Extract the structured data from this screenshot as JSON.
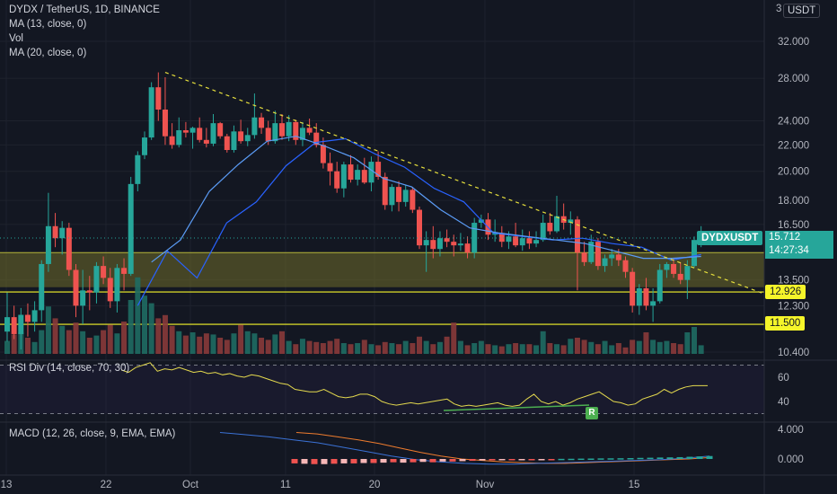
{
  "header": {
    "symbol_line": "DYDX / TetherUS, 1D, BINANCE",
    "indicators": [
      "MA (13, close, 0)",
      "Vol",
      "MA (20, close, 0)"
    ],
    "currency_button": "USDT",
    "scale_top_label": "3"
  },
  "rsi_label": "RSI Div (14, close, 70, 30)",
  "macd_label": "MACD (12, 26, close, 9, EMA, EMA)",
  "price_tag": {
    "symbol": "DYDXUSDT",
    "price": "15.712",
    "countdown": "14:27:34"
  },
  "level_tags": [
    "12.926",
    "11.500"
  ],
  "bull_div_marker": "R",
  "colors": {
    "background": "#131722",
    "up": "#26a69a",
    "down": "#ef5350",
    "ma13": "#2962ff",
    "ma20": "#5b9cf6",
    "trendline": "#e6df3c",
    "zone": "#706c2a",
    "level": "#f5f52a",
    "rsi": "#e4d94e",
    "macd": "#3b72d6",
    "signal": "#ef7c2e"
  },
  "chart_data": {
    "type": "candlestick",
    "symbol": "DYDX / TetherUS",
    "interval": "1D",
    "exchange": "BINANCE",
    "price_axis_ticks": [
      "32.000",
      "28.000",
      "24.000",
      "22.000",
      "20.000",
      "18.000",
      "16.500",
      "13.500",
      "12.300",
      "10.400"
    ],
    "x_axis_ticks": [
      "13",
      "22",
      "Oct",
      "11",
      "20",
      "Nov",
      "15"
    ],
    "ylim": [
      10.2,
      34
    ],
    "log_scale": true,
    "candles": [
      [
        11.2,
        12.9,
        10.8,
        11.8
      ],
      [
        11.8,
        12.3,
        10.9,
        11.1
      ],
      [
        11.1,
        12.2,
        10.5,
        11.9
      ],
      [
        11.9,
        12.4,
        11.0,
        11.6
      ],
      [
        11.6,
        12.5,
        11.2,
        12.1
      ],
      [
        12.1,
        14.5,
        11.6,
        14.3
      ],
      [
        14.3,
        18.5,
        13.9,
        16.4
      ],
      [
        16.4,
        17.2,
        15.2,
        15.7
      ],
      [
        15.7,
        16.7,
        14.8,
        16.3
      ],
      [
        16.3,
        16.6,
        13.7,
        14.0
      ],
      [
        14.0,
        14.3,
        11.8,
        12.3
      ],
      [
        12.3,
        14.0,
        11.5,
        13.0
      ],
      [
        13.0,
        13.7,
        12.1,
        12.9
      ],
      [
        12.9,
        14.4,
        12.4,
        14.2
      ],
      [
        14.2,
        14.7,
        13.3,
        13.6
      ],
      [
        13.6,
        14.1,
        12.2,
        12.5
      ],
      [
        12.5,
        14.3,
        12.0,
        14.1
      ],
      [
        14.1,
        14.6,
        13.0,
        13.8
      ],
      [
        13.8,
        19.6,
        13.7,
        19.1
      ],
      [
        19.1,
        21.5,
        18.6,
        21.2
      ],
      [
        21.2,
        23.1,
        20.9,
        22.6
      ],
      [
        22.6,
        27.6,
        22.4,
        27.1
      ],
      [
        27.1,
        28.6,
        24.0,
        25.0
      ],
      [
        25.0,
        28.1,
        22.0,
        22.7
      ],
      [
        22.7,
        23.8,
        21.7,
        22.0
      ],
      [
        22.0,
        24.3,
        21.8,
        23.2
      ],
      [
        23.2,
        23.9,
        22.6,
        23.0
      ],
      [
        23.0,
        23.5,
        21.7,
        23.4
      ],
      [
        23.4,
        24.3,
        22.2,
        22.4
      ],
      [
        22.4,
        23.4,
        21.8,
        22.1
      ],
      [
        22.1,
        24.6,
        21.9,
        23.8
      ],
      [
        23.8,
        23.9,
        22.5,
        22.7
      ],
      [
        22.7,
        22.9,
        21.4,
        21.6
      ],
      [
        21.6,
        23.6,
        21.4,
        23.1
      ],
      [
        23.1,
        24.1,
        22.1,
        22.3
      ],
      [
        22.3,
        23.4,
        21.9,
        22.8
      ],
      [
        22.8,
        26.5,
        22.5,
        24.3
      ],
      [
        24.3,
        24.7,
        22.9,
        23.4
      ],
      [
        23.4,
        24.0,
        22.0,
        22.3
      ],
      [
        22.3,
        24.9,
        22.1,
        23.8
      ],
      [
        23.8,
        24.6,
        22.4,
        22.7
      ],
      [
        22.7,
        24.5,
        22.3,
        23.9
      ],
      [
        23.9,
        24.1,
        22.0,
        22.4
      ],
      [
        22.4,
        23.9,
        21.9,
        23.4
      ],
      [
        23.4,
        24.2,
        22.8,
        23.0
      ],
      [
        23.0,
        23.8,
        21.8,
        22.0
      ],
      [
        22.0,
        22.6,
        20.2,
        20.6
      ],
      [
        20.6,
        21.4,
        19.0,
        20.0
      ],
      [
        20.0,
        20.7,
        18.5,
        18.8
      ],
      [
        18.8,
        20.7,
        18.2,
        20.5
      ],
      [
        20.5,
        21.2,
        19.2,
        19.4
      ],
      [
        19.4,
        20.5,
        19.0,
        20.1
      ],
      [
        20.1,
        21.0,
        19.1,
        19.2
      ],
      [
        19.2,
        21.1,
        18.6,
        20.7
      ],
      [
        20.7,
        21.5,
        19.4,
        19.6
      ],
      [
        19.6,
        19.9,
        17.4,
        17.7
      ],
      [
        17.7,
        19.1,
        17.3,
        18.9
      ],
      [
        18.9,
        19.3,
        17.3,
        17.9
      ],
      [
        17.9,
        19.0,
        17.6,
        18.7
      ],
      [
        18.7,
        18.9,
        17.2,
        17.4
      ],
      [
        17.4,
        17.6,
        15.1,
        15.3
      ],
      [
        15.3,
        16.1,
        13.9,
        15.6
      ],
      [
        15.6,
        16.4,
        14.6,
        15.1
      ],
      [
        15.1,
        16.1,
        14.7,
        15.7
      ],
      [
        15.7,
        16.2,
        15.2,
        15.5
      ],
      [
        15.5,
        15.9,
        14.7,
        15.3
      ],
      [
        15.3,
        16.0,
        15.0,
        15.4
      ],
      [
        15.4,
        15.8,
        14.6,
        14.9
      ],
      [
        14.9,
        16.9,
        14.6,
        16.6
      ],
      [
        16.6,
        17.1,
        16.3,
        16.8
      ],
      [
        16.8,
        17.2,
        15.6,
        15.9
      ],
      [
        15.9,
        16.8,
        15.5,
        16.0
      ],
      [
        16.0,
        16.4,
        15.2,
        15.5
      ],
      [
        15.5,
        16.1,
        15.1,
        15.8
      ],
      [
        15.8,
        16.6,
        15.2,
        15.3
      ],
      [
        15.3,
        16.2,
        15.0,
        15.7
      ],
      [
        15.7,
        16.1,
        15.1,
        15.4
      ],
      [
        15.4,
        16.1,
        15.2,
        15.6
      ],
      [
        15.6,
        17.1,
        15.5,
        16.6
      ],
      [
        16.6,
        17.2,
        15.9,
        16.1
      ],
      [
        16.1,
        18.3,
        16.0,
        17.0
      ],
      [
        17.0,
        17.8,
        16.2,
        16.6
      ],
      [
        16.6,
        17.3,
        15.9,
        16.8
      ],
      [
        16.8,
        17.0,
        13.0,
        14.9
      ],
      [
        14.9,
        15.5,
        14.2,
        14.4
      ],
      [
        14.4,
        15.9,
        14.3,
        15.5
      ],
      [
        15.5,
        15.7,
        14.0,
        14.2
      ],
      [
        14.2,
        14.8,
        13.9,
        14.6
      ],
      [
        14.6,
        15.1,
        14.2,
        14.8
      ],
      [
        14.8,
        15.1,
        14.2,
        14.5
      ],
      [
        14.5,
        14.7,
        13.6,
        13.9
      ],
      [
        13.9,
        14.1,
        12.0,
        12.3
      ],
      [
        12.3,
        13.3,
        11.9,
        13.1
      ],
      [
        13.1,
        13.6,
        12.1,
        12.3
      ],
      [
        12.3,
        13.1,
        11.6,
        12.5
      ],
      [
        12.5,
        14.3,
        12.4,
        14.0
      ],
      [
        14.0,
        14.4,
        13.6,
        14.3
      ],
      [
        14.3,
        14.6,
        13.6,
        13.8
      ],
      [
        13.8,
        14.4,
        13.3,
        13.5
      ],
      [
        13.5,
        14.5,
        12.6,
        14.2
      ],
      [
        14.2,
        15.8,
        14.1,
        15.6
      ],
      [
        15.6,
        16.4,
        15.2,
        15.7
      ]
    ],
    "volume": [
      1.2,
      1.8,
      2.0,
      1.5,
      1.1,
      2.2,
      4.4,
      3.3,
      2.6,
      2.2,
      2.9,
      2.1,
      1.5,
      1.7,
      2.2,
      2.7,
      1.9,
      3.0,
      5.0,
      7.1,
      5.4,
      4.7,
      3.3,
      3.6,
      2.6,
      2.1,
      1.7,
      2.0,
      1.6,
      1.9,
      1.8,
      1.5,
      1.3,
      1.9,
      2.7,
      2.1,
      1.9,
      1.5,
      1.3,
      1.8,
      2.1,
      1.2,
      0.9,
      1.4,
      1.2,
      1.1,
      1.0,
      1.2,
      1.4,
      1.0,
      0.9,
      1.0,
      1.3,
      0.9,
      0.8,
      1.1,
      1.0,
      0.9,
      1.2,
      1.0,
      1.6,
      1.2,
      0.9,
      1.1,
      1.6,
      2.9,
      1.2,
      0.8,
      1.0,
      1.2,
      0.9,
      0.8,
      0.7,
      0.9,
      1.0,
      0.9,
      0.9,
      0.8,
      2.1,
      1.0,
      0.9,
      0.8,
      1.4,
      1.5,
      1.3,
      1.1,
      0.9,
      1.2,
      0.8,
      1.0,
      0.6,
      1.3,
      1.2,
      2.0,
      1.3,
      1.1,
      1.2,
      1.0,
      0.9,
      2.0,
      2.5,
      0.8
    ],
    "ma13": [
      [
        12.3,
        15.0
      ],
      [
        13.6,
        16.6
      ],
      [
        17.9,
        20.4
      ],
      [
        22.2,
        22.5
      ],
      [
        21.3,
        20.3
      ],
      [
        18.8,
        17.9
      ],
      [
        16.0,
        15.8
      ],
      [
        15.6,
        15.7
      ],
      [
        15.4,
        15.2
      ],
      [
        14.5,
        14.8
      ]
    ],
    "ma20": [
      [
        14.4,
        15.6
      ],
      [
        18.6,
        20.5
      ],
      [
        22.3,
        22.7
      ],
      [
        21.9,
        21.0
      ],
      [
        19.5,
        18.9
      ],
      [
        17.4,
        16.3
      ],
      [
        16.0,
        15.8
      ],
      [
        15.6,
        15.4
      ],
      [
        15.0,
        14.6
      ],
      [
        14.6,
        14.7
      ]
    ],
    "zone": [
      13.15,
      14.9
    ],
    "levels": [
      12.926,
      11.5
    ],
    "trendline": [
      [
        23,
        28.6
      ],
      [
        100,
        14.1
      ]
    ],
    "rsi": {
      "range": [
        30,
        70
      ],
      "ticks": [
        "60",
        "40"
      ],
      "values": [
        66,
        64,
        68,
        70,
        72,
        65,
        67,
        66,
        68,
        66,
        64,
        65,
        63,
        64,
        62,
        63,
        61,
        60,
        62,
        61,
        59,
        57,
        55,
        54,
        50,
        49,
        48,
        48,
        50,
        47,
        44,
        43,
        44,
        46,
        46,
        44,
        40,
        38,
        37,
        38,
        39,
        38,
        39,
        40,
        41,
        42,
        38,
        36,
        37,
        36,
        37,
        38,
        39,
        37,
        36,
        37,
        42,
        46,
        40,
        38,
        40,
        37,
        39,
        42,
        44,
        46,
        48,
        44,
        40,
        39,
        37,
        38,
        42,
        44,
        46,
        50,
        47,
        50,
        52,
        53,
        53,
        53
      ]
    },
    "macd": {
      "ticks": [
        "4.000",
        "0.000"
      ],
      "macd_line": [
        3.6,
        3.3,
        3.0,
        2.6,
        2.2,
        1.6,
        1.0,
        0.4,
        -0.1,
        -0.4,
        -0.6,
        -0.7,
        -0.7,
        -0.6,
        -0.5,
        -0.4,
        -0.3,
        -0.2,
        -0.1,
        0.1,
        0.4
      ],
      "signal_line": [
        3.6,
        3.4,
        3.0,
        2.6,
        2.1,
        1.5,
        0.9,
        0.4,
        0.0,
        -0.2,
        -0.4,
        -0.5,
        -0.6,
        -0.6,
        -0.5,
        -0.4,
        -0.3,
        -0.2,
        -0.1,
        0.0,
        0.2
      ],
      "histogram": [
        -0.6,
        -0.65,
        -0.7,
        -0.7,
        -0.65,
        -0.6,
        -0.6,
        -0.55,
        -0.55,
        -0.5,
        -0.45,
        -0.5,
        -0.45,
        -0.4,
        -0.45,
        -0.35,
        -0.35,
        -0.3,
        -0.25,
        -0.2,
        -0.18,
        -0.15,
        -0.1,
        -0.08,
        -0.05,
        -0.03,
        -0.02,
        0.02,
        0.03,
        0.05,
        0.06,
        0.08,
        0.09,
        0.1,
        0.12,
        0.15,
        0.17,
        0.2,
        0.22,
        0.25,
        0.3,
        0.35,
        0.4
      ]
    }
  }
}
